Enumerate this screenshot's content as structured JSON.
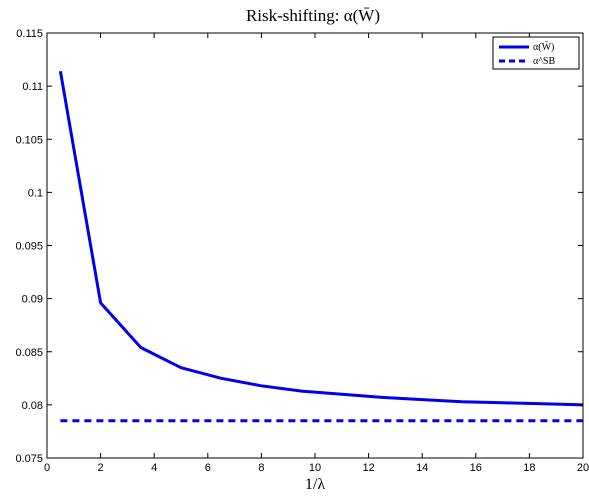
{
  "chart_data": {
    "type": "line",
    "title": "Risk-shifting: α(W̄)",
    "xlabel": "1/λ",
    "ylabel": "",
    "xlim": [
      0,
      20
    ],
    "ylim": [
      0.075,
      0.115
    ],
    "x_ticks": [
      0,
      2,
      4,
      6,
      8,
      10,
      12,
      14,
      16,
      18,
      20
    ],
    "x_tick_labels": [
      "0",
      "2",
      "4",
      "6",
      "8",
      "10",
      "12",
      "14",
      "16",
      "18",
      "20"
    ],
    "y_ticks": [
      0.075,
      0.08,
      0.085,
      0.09,
      0.095,
      0.1,
      0.105,
      0.11,
      0.115
    ],
    "y_tick_labels": [
      "0.075",
      "0.08",
      "0.085",
      "0.09",
      "0.095",
      "0.1",
      "0.105",
      "0.11",
      "0.115"
    ],
    "grid": false,
    "legend_position": "top-right",
    "colors": {
      "series": "#0000ee",
      "axis": "#000000",
      "background": "#ffffff"
    },
    "series": [
      {
        "name": "α(W̄)",
        "style": "solid",
        "x": [
          0.5,
          2,
          3.5,
          5,
          6.5,
          8,
          9.5,
          11,
          12.5,
          14,
          15.5,
          17,
          18.5,
          20
        ],
        "y": [
          0.1114,
          0.0896,
          0.0854,
          0.0835,
          0.0825,
          0.0818,
          0.0813,
          0.081,
          0.0807,
          0.0805,
          0.0803,
          0.0802,
          0.0801,
          0.08
        ]
      },
      {
        "name": "α^SB",
        "style": "dashed",
        "x": [
          0.5,
          20
        ],
        "y": [
          0.0785,
          0.0785
        ]
      }
    ]
  }
}
